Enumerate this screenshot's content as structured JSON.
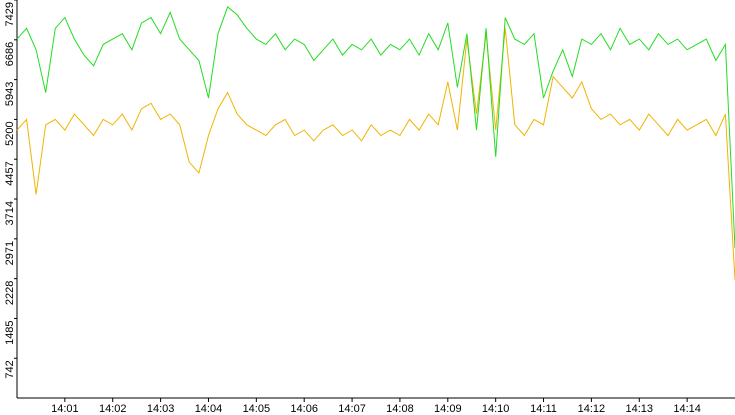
{
  "chart_data": {
    "type": "line",
    "x": [
      0,
      0.2,
      0.4,
      0.6,
      0.8,
      1,
      1.2,
      1.4,
      1.6,
      1.8,
      2,
      2.2,
      2.4,
      2.6,
      2.8,
      3,
      3.2,
      3.4,
      3.6,
      3.8,
      4,
      4.2,
      4.4,
      4.6,
      4.8,
      5,
      5.2,
      5.4,
      5.6,
      5.8,
      6,
      6.2,
      6.4,
      6.6,
      6.8,
      7,
      7.2,
      7.4,
      7.6,
      7.8,
      8,
      8.2,
      8.4,
      8.6,
      8.8,
      9,
      9.2,
      9.4,
      9.6,
      9.8,
      10,
      10.2,
      10.4,
      10.6,
      10.8,
      11,
      11.2,
      11.4,
      11.6,
      11.8,
      12,
      12.2,
      12.4,
      12.6,
      12.8,
      13,
      13.2,
      13.4,
      13.6,
      13.8,
      14,
      14.2,
      14.4,
      14.6,
      14.8,
      15
    ],
    "series": [
      {
        "color": "#22dd22",
        "values": [
          6700,
          6900,
          6500,
          5700,
          6900,
          7100,
          6700,
          6400,
          6200,
          6600,
          6700,
          6800,
          6500,
          7000,
          7100,
          6800,
          7200,
          6700,
          6500,
          6300,
          5600,
          6800,
          7300,
          7150,
          6900,
          6700,
          6600,
          6800,
          6500,
          6700,
          6600,
          6300,
          6500,
          6700,
          6400,
          6600,
          6500,
          6700,
          6400,
          6600,
          6500,
          6700,
          6400,
          6800,
          6500,
          7000,
          5800,
          6800,
          5000,
          6900,
          4500,
          7100,
          6700,
          6600,
          6800,
          5600,
          6100,
          6500,
          6000,
          6700,
          6600,
          6800,
          6500,
          6900,
          6600,
          6700,
          6500,
          6800,
          6600,
          6700,
          6500,
          6600,
          6700,
          6300,
          6600,
          2800
        ]
      },
      {
        "color": "#f0b400",
        "values": [
          5000,
          5200,
          3800,
          5100,
          5200,
          5000,
          5300,
          5100,
          4900,
          5200,
          5100,
          5300,
          5000,
          5400,
          5500,
          5200,
          5300,
          5100,
          4400,
          4200,
          4900,
          5400,
          5700,
          5300,
          5100,
          5000,
          4900,
          5100,
          5200,
          4900,
          5000,
          4800,
          5000,
          5100,
          4900,
          5000,
          4800,
          5100,
          4900,
          5000,
          4900,
          5200,
          5000,
          5300,
          5100,
          5900,
          5000,
          6700,
          5300,
          6800,
          5000,
          6900,
          5100,
          4900,
          5200,
          5100,
          6000,
          5800,
          5600,
          5900,
          5400,
          5200,
          5300,
          5100,
          5200,
          5000,
          5300,
          5100,
          4900,
          5200,
          5000,
          5100,
          5200,
          4900,
          5300,
          2200
        ]
      }
    ],
    "xlim": [
      0,
      15
    ],
    "xticks": [
      {
        "value": 1,
        "label": "14:01"
      },
      {
        "value": 2,
        "label": "14:02"
      },
      {
        "value": 3,
        "label": "14:03"
      },
      {
        "value": 4,
        "label": "14:04"
      },
      {
        "value": 5,
        "label": "14:05"
      },
      {
        "value": 6,
        "label": "14:06"
      },
      {
        "value": 7,
        "label": "14:07"
      },
      {
        "value": 8,
        "label": "14:08"
      },
      {
        "value": 9,
        "label": "14:09"
      },
      {
        "value": 10,
        "label": "14:10"
      },
      {
        "value": 11,
        "label": "14:11"
      },
      {
        "value": 12,
        "label": "14:12"
      },
      {
        "value": 13,
        "label": "14:13"
      },
      {
        "value": 14,
        "label": "14:14"
      }
    ],
    "ylim": [
      0,
      7429
    ],
    "yticks": [
      742,
      1485,
      2228,
      2971,
      3714,
      4457,
      5200,
      5943,
      6686,
      7429
    ]
  }
}
